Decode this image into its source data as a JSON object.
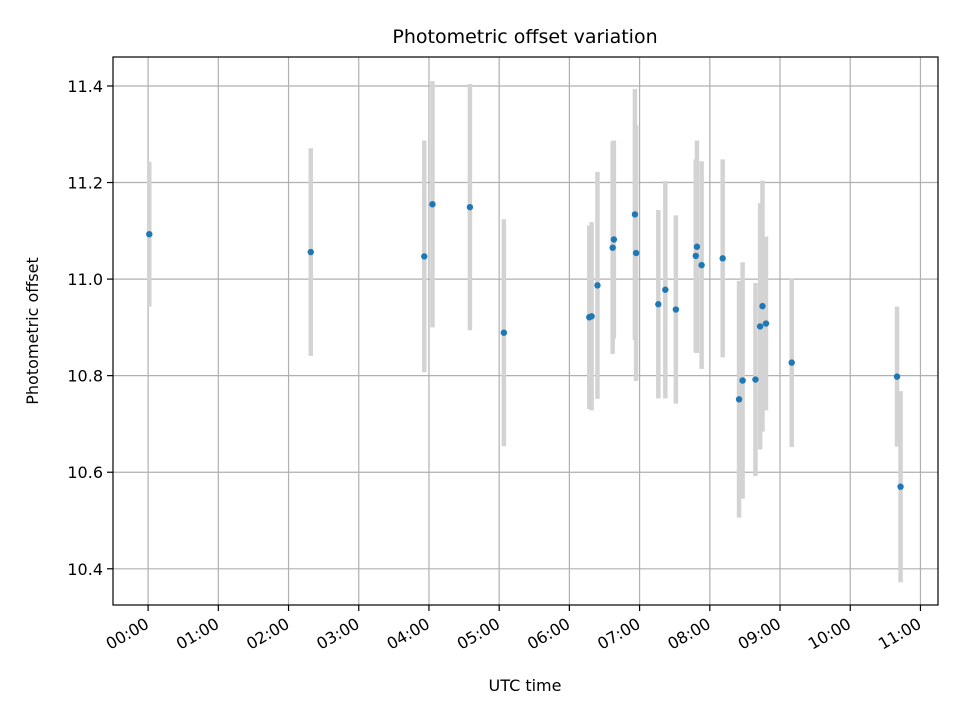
{
  "chart_data": {
    "type": "scatter",
    "title": "Photometric offset variation",
    "xlabel": "UTC time",
    "ylabel": "Photometric offset",
    "x_tick_labels": [
      "00:00",
      "01:00",
      "02:00",
      "03:00",
      "04:00",
      "05:00",
      "06:00",
      "07:00",
      "08:00",
      "09:00",
      "10:00",
      "11:00"
    ],
    "y_ticks": [
      10.4,
      10.6,
      10.8,
      11.0,
      11.2,
      11.4
    ],
    "y_tick_labels": [
      "10.4",
      "10.6",
      "10.8",
      "11.0",
      "11.2",
      "11.4"
    ],
    "xlim": [
      "-00:30",
      "11:15"
    ],
    "ylim": [
      10.325,
      11.46
    ],
    "grid": true,
    "point_color": "#1f77b4",
    "errorbar_color": "#d3d3d3",
    "points": [
      {
        "t": "00:01",
        "y": 11.093,
        "err": 0.15
      },
      {
        "t": "02:19",
        "y": 11.056,
        "err": 0.215
      },
      {
        "t": "03:56",
        "y": 11.047,
        "err": 0.24
      },
      {
        "t": "04:03",
        "y": 11.155,
        "err": 0.255
      },
      {
        "t": "04:35",
        "y": 11.149,
        "err": 0.255
      },
      {
        "t": "05:04",
        "y": 10.889,
        "err": 0.235
      },
      {
        "t": "06:17",
        "y": 10.921,
        "err": 0.19
      },
      {
        "t": "06:19",
        "y": 10.923,
        "err": 0.195
      },
      {
        "t": "06:24",
        "y": 10.987,
        "err": 0.235
      },
      {
        "t": "06:37",
        "y": 11.065,
        "err": 0.22
      },
      {
        "t": "06:38",
        "y": 11.082,
        "err": 0.205
      },
      {
        "t": "06:56",
        "y": 11.134,
        "err": 0.26
      },
      {
        "t": "06:57",
        "y": 11.054,
        "err": 0.265
      },
      {
        "t": "07:16",
        "y": 10.948,
        "err": 0.195
      },
      {
        "t": "07:22",
        "y": 10.978,
        "err": 0.225
      },
      {
        "t": "07:31",
        "y": 10.937,
        "err": 0.195
      },
      {
        "t": "07:48",
        "y": 11.048,
        "err": 0.2
      },
      {
        "t": "07:49",
        "y": 11.067,
        "err": 0.22
      },
      {
        "t": "07:53",
        "y": 11.029,
        "err": 0.215
      },
      {
        "t": "08:11",
        "y": 11.043,
        "err": 0.205
      },
      {
        "t": "08:25",
        "y": 10.751,
        "err": 0.245
      },
      {
        "t": "08:28",
        "y": 10.79,
        "err": 0.245
      },
      {
        "t": "08:39",
        "y": 10.792,
        "err": 0.2
      },
      {
        "t": "08:43",
        "y": 10.902,
        "err": 0.255
      },
      {
        "t": "08:45",
        "y": 10.944,
        "err": 0.26
      },
      {
        "t": "08:48",
        "y": 10.908,
        "err": 0.18
      },
      {
        "t": "09:10",
        "y": 10.827,
        "err": 0.175
      },
      {
        "t": "10:40",
        "y": 10.798,
        "err": 0.145
      },
      {
        "t": "10:43",
        "y": 10.57,
        "err": 0.198
      }
    ]
  }
}
